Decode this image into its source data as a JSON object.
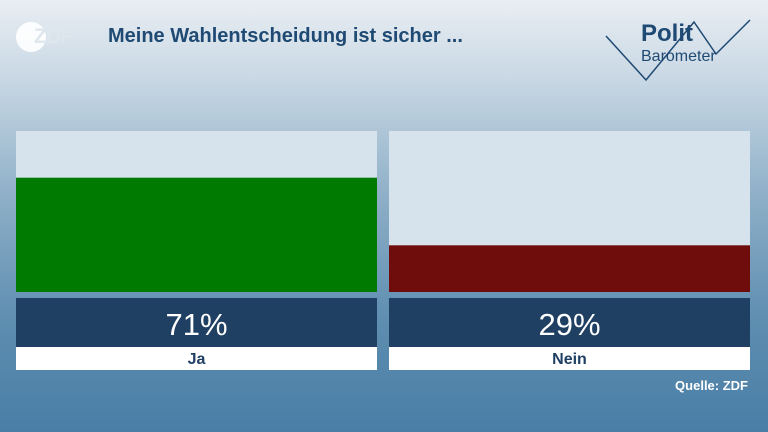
{
  "header": {
    "brand": "ZDF",
    "title": "Meine Wahlentscheidung ist sicher ...",
    "logo_line1": "Polit",
    "logo_line2": "Barometer"
  },
  "footer": {
    "source": "Quelle: ZDF"
  },
  "chart_data": {
    "type": "bar",
    "categories": [
      "Ja",
      "Nein"
    ],
    "values": [
      71,
      29
    ],
    "value_labels": [
      "71%",
      "29%"
    ],
    "colors": [
      "#007a00",
      "#6f0d0d"
    ],
    "title": "Meine Wahlentscheidung ist sicher ...",
    "xlabel": "",
    "ylabel": "",
    "ylim": [
      0,
      100
    ],
    "grid": false,
    "legend": "none"
  }
}
